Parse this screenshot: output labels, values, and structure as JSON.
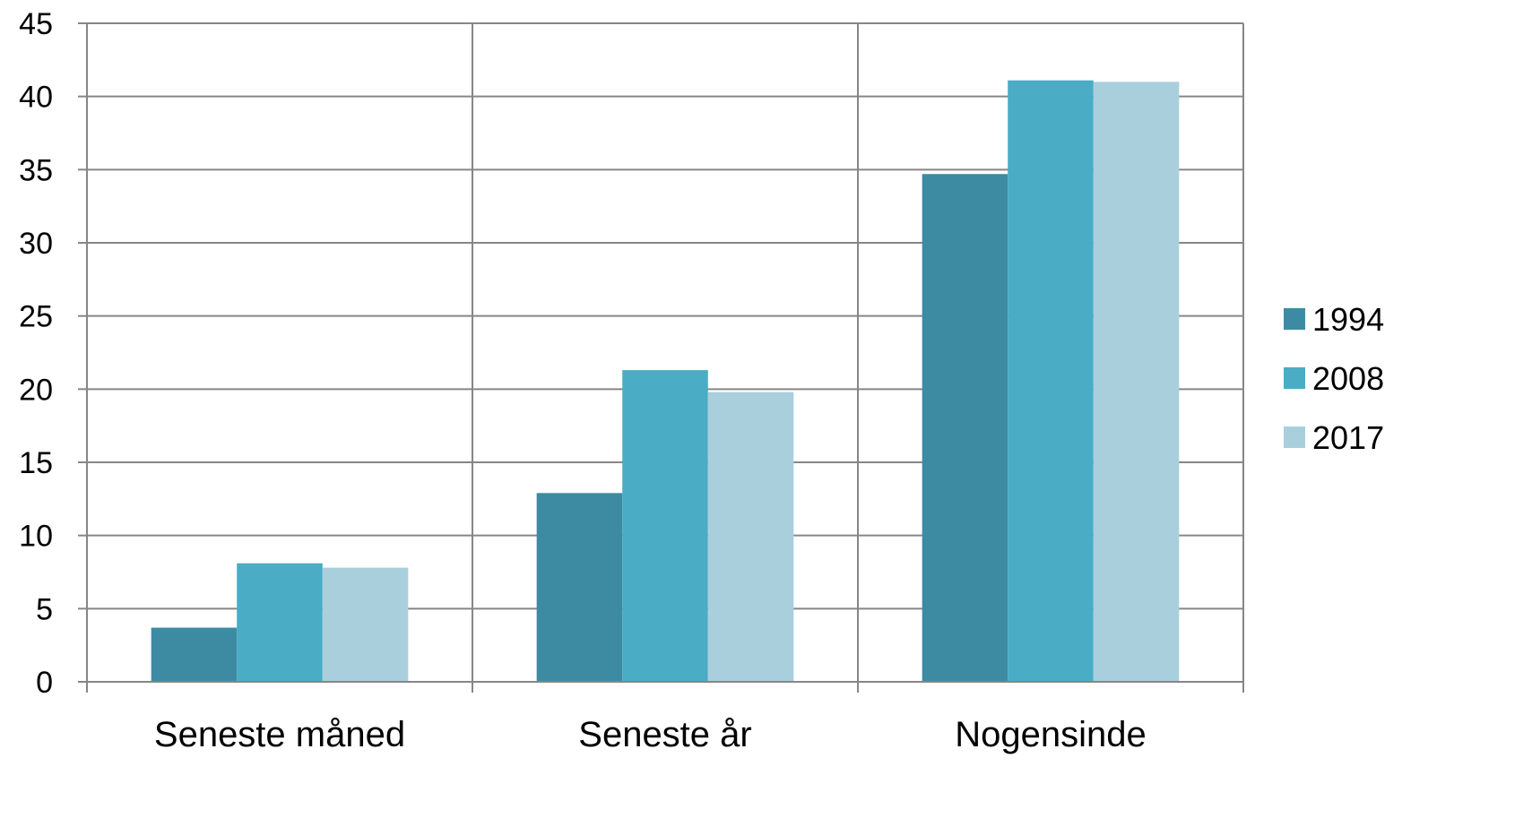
{
  "chart_data": {
    "type": "bar",
    "title": "",
    "xlabel": "",
    "ylabel": "",
    "categories": [
      "Seneste måned",
      "Seneste år",
      "Nogensinde"
    ],
    "series": [
      {
        "name": "1994",
        "values": [
          3.7,
          12.9,
          34.7
        ],
        "color": "#3d8ba2"
      },
      {
        "name": "2008",
        "values": [
          8.1,
          21.3,
          41.1
        ],
        "color": "#4aacc5"
      },
      {
        "name": "2017",
        "values": [
          7.8,
          19.8,
          41.0
        ],
        "color": "#a9cfdd"
      }
    ],
    "ylim": [
      0,
      45
    ],
    "yticks": [
      "0",
      "5",
      "10",
      "15",
      "20",
      "25",
      "30",
      "35",
      "40",
      "45"
    ],
    "grid": true,
    "legend_position": "right"
  }
}
